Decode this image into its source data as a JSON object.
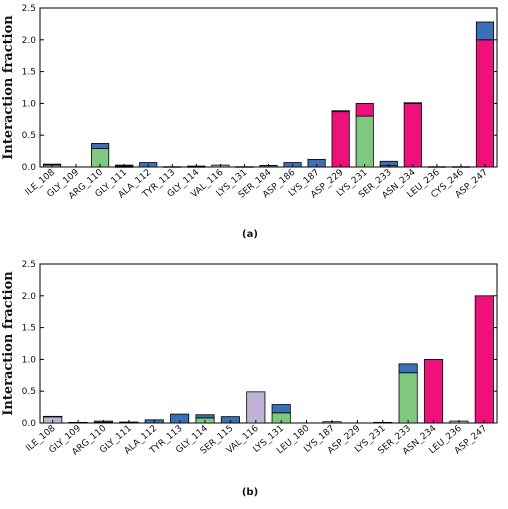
{
  "colors": {
    "H-bonds": "#3b6fb6",
    "Hydrophobic": "#bfb2d6",
    "Ionic": "#f0107c",
    "Water bridges": "#7fc97f"
  },
  "chart_data": [
    {
      "type": "bar",
      "stacked": true,
      "panel_label": "(a)",
      "ylabel": "Interaction fraction",
      "ylim": [
        0,
        2.5
      ],
      "yticks": [
        "0.0",
        "0.5",
        "1.0",
        "1.5",
        "2.0",
        "2.5"
      ],
      "grid": false,
      "categories": [
        "ILE_108",
        "GLY_109",
        "ARG_110",
        "GLY_111",
        "ALA_112",
        "TYR_113",
        "GLY_114",
        "VAL_116",
        "LYS_131",
        "SER_184",
        "ASP_186",
        "LYS_187",
        "ASP_229",
        "LYS_231",
        "SER_233",
        "ASN_234",
        "LEU_236",
        "CYS_246",
        "ASP_247"
      ],
      "series": [
        {
          "color_key": "Water bridges",
          "values": [
            0.03,
            0,
            0.29,
            0.005,
            0,
            0,
            0,
            0,
            0,
            0,
            0,
            0,
            0,
            0.8,
            0.02,
            0,
            0,
            0,
            0
          ]
        },
        {
          "color_key": "Hydrophobic",
          "values": [
            0.01,
            0,
            0,
            0.01,
            0,
            0.005,
            0.005,
            0.03,
            0,
            0,
            0,
            0,
            0,
            0,
            0,
            0,
            0.005,
            0.005,
            0
          ]
        },
        {
          "color_key": "Ionic",
          "values": [
            0,
            0,
            0,
            0,
            0,
            0,
            0,
            0,
            0,
            0,
            0,
            0,
            0.87,
            0.2,
            0,
            1.0,
            0,
            0,
            2.0
          ]
        },
        {
          "color_key": "H-bonds",
          "values": [
            0.005,
            0,
            0.08,
            0.015,
            0.07,
            0,
            0.01,
            0,
            0.005,
            0.025,
            0.07,
            0.12,
            0.015,
            0,
            0.07,
            0.01,
            0,
            0,
            0.28
          ]
        }
      ]
    },
    {
      "type": "bar",
      "stacked": true,
      "panel_label": "(b)",
      "ylabel": "Interaction fraction",
      "ylim": [
        0,
        2.5
      ],
      "yticks": [
        "0.0",
        "0.5",
        "1.0",
        "1.5",
        "2.0",
        "2.5"
      ],
      "grid": false,
      "categories": [
        "ILE_108",
        "GLY_109",
        "ARG_110",
        "GLY_111",
        "ALA_112",
        "TYR_113",
        "GLY_114",
        "SER_115",
        "VAL_116",
        "LYS_131",
        "LEU_180",
        "LYS_187",
        "ASP_229",
        "LYS_231",
        "SER_233",
        "ASN_234",
        "LEU_236",
        "ASP_247"
      ],
      "series": [
        {
          "color_key": "Water bridges",
          "values": [
            0,
            0,
            0,
            0.01,
            0,
            0,
            0.08,
            0,
            0,
            0.16,
            0,
            0,
            0,
            0,
            0.79,
            0,
            0,
            0
          ]
        },
        {
          "color_key": "Hydrophobic",
          "values": [
            0.1,
            0.01,
            0.01,
            0.005,
            0,
            0,
            0,
            0,
            0.49,
            0,
            0,
            0.02,
            0,
            0,
            0,
            0,
            0.03,
            0
          ]
        },
        {
          "color_key": "Ionic",
          "values": [
            0,
            0,
            0,
            0,
            0,
            0,
            0,
            0,
            0,
            0,
            0,
            0,
            0,
            0,
            0,
            1.0,
            0,
            2.0
          ]
        },
        {
          "color_key": "H-bonds",
          "values": [
            0.005,
            0,
            0.02,
            0,
            0.05,
            0.14,
            0.05,
            0.1,
            0,
            0.13,
            0,
            0,
            0,
            0.01,
            0.14,
            0,
            0,
            0
          ]
        }
      ]
    }
  ]
}
